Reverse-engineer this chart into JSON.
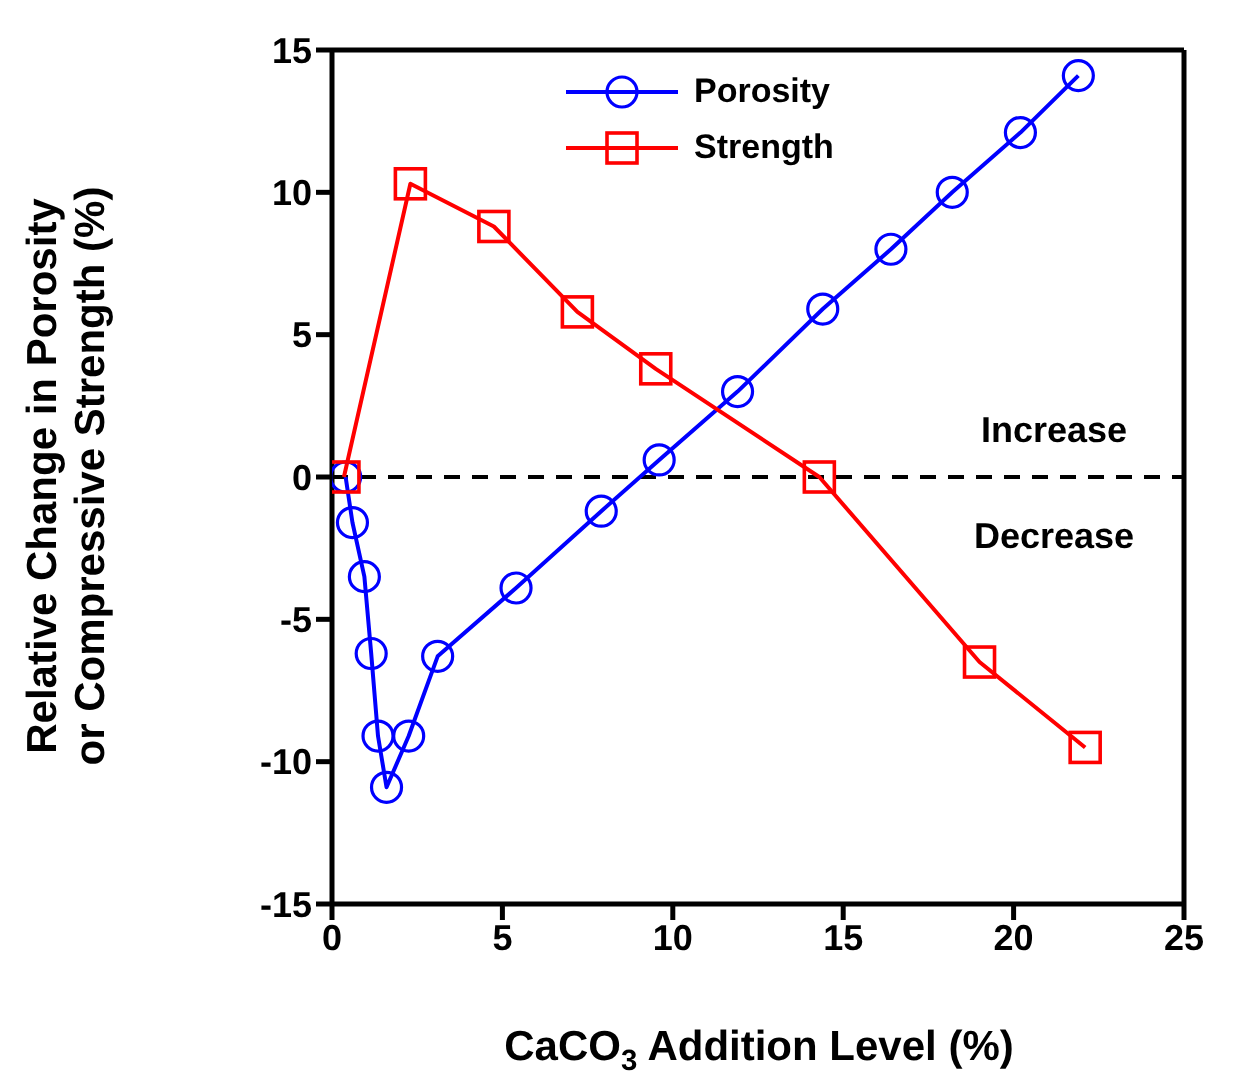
{
  "chart_data": {
    "type": "line",
    "xlabel": "CaCO$_{3}$ Addition Level (%)",
    "ylabel": "Relative Change in Porosity\nor Compressive Strength (%)",
    "xlim": [
      0,
      25
    ],
    "xticks": [
      0,
      5,
      10,
      15,
      20,
      25
    ],
    "ylim": [
      -15,
      15
    ],
    "yticks": [
      -15,
      -10,
      -5,
      0,
      5,
      10,
      15
    ],
    "series": [
      {
        "name": "Porosity",
        "color": "#0000ff",
        "marker": "circle",
        "x": [
          0.4,
          0.6,
          0.95,
          1.15,
          1.35,
          1.6,
          2.25,
          3.1,
          5.4,
          7.9,
          9.6,
          11.9,
          14.4,
          16.4,
          18.2,
          20.2,
          21.9
        ],
        "values": [
          0,
          -1.6,
          -3.5,
          -6.2,
          -9.1,
          -10.9,
          -9.1,
          -6.3,
          -3.9,
          -1.2,
          0.6,
          3.0,
          5.9,
          8.0,
          10.0,
          12.1,
          14.1
        ]
      },
      {
        "name": "Strength",
        "color": "#ff0000",
        "marker": "square",
        "x": [
          0.35,
          2.3,
          4.75,
          7.2,
          9.5,
          14.3,
          19.0,
          22.1
        ],
        "values": [
          0,
          10.3,
          8.8,
          5.8,
          3.8,
          0,
          -6.5,
          -9.5
        ]
      }
    ],
    "ref_lines": [
      {
        "axis": "y",
        "value": 0,
        "color": "#000000",
        "line_style": "dashed"
      }
    ],
    "annotations": [
      "Increase",
      "Decrease"
    ],
    "legend": "top",
    "grid": false,
    "line_style": "solid"
  }
}
